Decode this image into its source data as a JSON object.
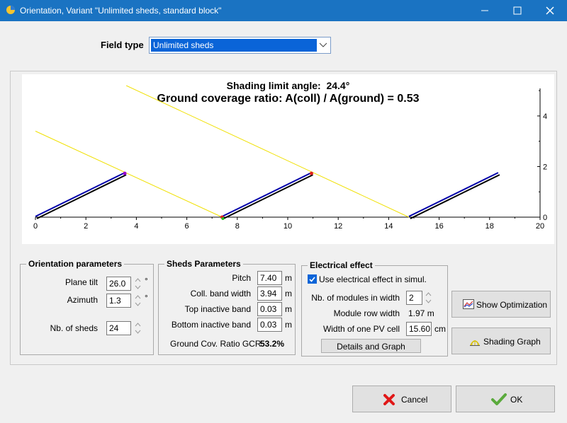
{
  "window": {
    "title": "Orientation, Variant \"Unlimited sheds, standard block\""
  },
  "field_type": {
    "label": "Field type",
    "selected": "Unlimited sheds"
  },
  "chart": {
    "shading_label": "Shading limit angle:",
    "shading_value": "24.4°",
    "gcr_title": "Ground coverage ratio: A(coll) / A(ground) = 0.53"
  },
  "chart_data": {
    "type": "line",
    "x_ticks": [
      "0",
      "2",
      "4",
      "6",
      "8",
      "10",
      "12",
      "14",
      "16",
      "18",
      "20"
    ],
    "y_ticks": [
      "0",
      "2",
      "4"
    ],
    "xlim": [
      0,
      20
    ],
    "ylim": [
      0,
      5.2
    ],
    "sheds": [
      {
        "x": [
          0,
          3.54
        ],
        "y": [
          0,
          1.73
        ]
      },
      {
        "x": [
          7.4,
          10.94
        ],
        "y": [
          0,
          1.73
        ]
      },
      {
        "x": [
          14.8,
          18.34
        ],
        "y": [
          0,
          1.73
        ]
      }
    ],
    "shading_rays": [
      {
        "x": [
          0,
          7.4
        ],
        "y": [
          3.4,
          0
        ]
      },
      {
        "x": [
          3.6,
          14.8
        ],
        "y": [
          5.2,
          0
        ]
      }
    ],
    "colors": {
      "shed": "#0000aa",
      "shed_back": "#000000",
      "ray": "#f0e000",
      "top_marker": "#e02020",
      "bottom_marker": "#20c020",
      "purple_marker": "#9900cc"
    }
  },
  "orientation": {
    "title": "Orientation parameters",
    "plane_tilt_label": "Plane tilt",
    "plane_tilt": "26.0",
    "azimuth_label": "Azimuth",
    "azimuth": "1.3",
    "deg": "°",
    "nb_sheds_label": "Nb. of sheds",
    "nb_sheds": "24"
  },
  "sheds": {
    "title": "Sheds Parameters",
    "pitch_label": "Pitch",
    "pitch": "7.40",
    "coll_band_label": "Coll. band width",
    "coll_band": "3.94",
    "top_inactive_label": "Top inactive band",
    "top_inactive": "0.03",
    "bottom_inactive_label": "Bottom inactive band",
    "bottom_inactive": "0.03",
    "unit_m": "m",
    "gcr_label": "Ground Cov. Ratio GCR",
    "gcr_value": "53.2%"
  },
  "electrical": {
    "title": "Electrical effect",
    "use_label": "Use electrical effect in simul.",
    "nb_modules_label": "Nb. of modules in width",
    "nb_modules": "2",
    "row_width_label": "Module row width",
    "row_width": "1.97 m",
    "cell_width_label": "Width of one PV cell",
    "cell_width": "15.60",
    "unit_cm": "cm",
    "details_button": "Details and Graph"
  },
  "buttons": {
    "show_optimization": "Show Optimization",
    "shading_graph": "Shading Graph",
    "cancel": "Cancel",
    "ok": "OK"
  }
}
